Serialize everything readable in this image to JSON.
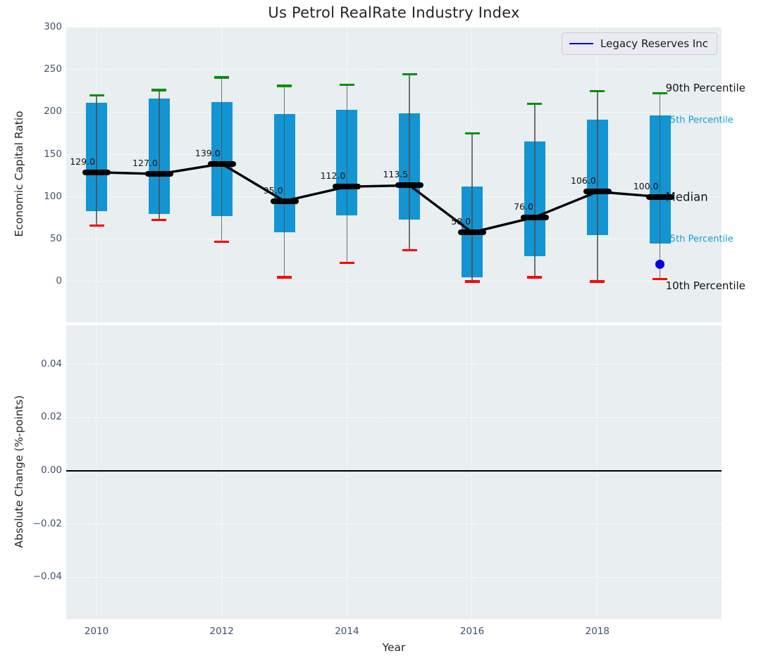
{
  "labels": {
    "title": "Us Petrol RealRate Industry Index",
    "top_ylabel": "Economic Capital Ratio",
    "bottom_ylabel": "Absolute Change (%-points)",
    "xlabel": "Year",
    "legend": "Legacy Reserves Inc"
  },
  "ticks": {
    "top_y": [
      "300",
      "250",
      "200",
      "150",
      "100",
      "50",
      "0"
    ],
    "top_y_values": [
      300,
      250,
      200,
      150,
      100,
      50,
      0
    ],
    "bottom_y": [
      "0.04",
      "0.02",
      "0.00",
      "−0.02",
      "−0.04"
    ],
    "bottom_y_values": [
      0.04,
      0.02,
      0,
      -0.02,
      -0.04
    ],
    "x": [
      "2010",
      "2012",
      "2014",
      "2016",
      "2018"
    ],
    "x_values": [
      2010,
      2012,
      2014,
      2016,
      2018
    ]
  },
  "colors": {
    "box_fill": "#1295d2",
    "whisker": "#4d4d4d",
    "cap_high": "#0a8f0a",
    "cap_low": "#ff0000",
    "median": "#000000",
    "company": "#0000e0",
    "axes_bg": "#e9eef0",
    "grid": "#ffffff",
    "tick_text": "#41516d",
    "label_text": "#262626",
    "title_text": "#262626",
    "annotation_cyan": "#1a9cd8",
    "annotation_black": "#151515",
    "legend_bg": "#eaebf2",
    "legend_border": "#cccccc"
  },
  "chart_data": [
    {
      "type": "box",
      "title": "Us Petrol RealRate Industry Index",
      "xlabel": "",
      "ylabel": "Economic Capital Ratio",
      "ylim": [
        -48,
        300
      ],
      "xlim": [
        2009.5,
        2020
      ],
      "yticks": [
        0,
        50,
        100,
        150,
        200,
        250,
        300
      ],
      "xticks": [
        2010,
        2012,
        2014,
        2016,
        2018
      ],
      "grid": true,
      "legend_position": "upper right",
      "legend_entries": [
        "Legacy Reserves Inc"
      ],
      "years": [
        2010,
        2011,
        2012,
        2013,
        2014,
        2015,
        2016,
        2017,
        2018,
        2019
      ],
      "series": [
        {
          "name": "90th Percentile",
          "values": [
            220,
            226,
            241,
            231,
            232,
            245,
            175,
            210,
            225,
            222
          ]
        },
        {
          "name": "75th Percentile",
          "values": [
            211,
            216,
            212,
            198,
            203,
            199,
            112,
            165,
            191,
            196
          ]
        },
        {
          "name": "Median",
          "values": [
            129,
            127,
            139,
            95,
            112,
            113.5,
            58,
            76,
            106,
            100
          ]
        },
        {
          "name": "25th Percentile",
          "values": [
            83,
            80,
            77,
            58,
            78,
            73,
            5,
            30,
            55,
            45
          ]
        },
        {
          "name": "10th Percentile",
          "values": [
            66,
            73,
            47,
            5,
            22,
            37,
            0,
            5,
            0,
            3
          ]
        }
      ],
      "median_labels": [
        "129.0",
        "127.0",
        "139.0",
        "95.0",
        "112.0",
        "113.5",
        "58.0",
        "76.0",
        "106.0",
        "100.0"
      ],
      "company_point": {
        "label": "Legacy Reserves Inc",
        "year": 2019,
        "value": 20
      },
      "percentile_annotations": [
        {
          "text": "90th Percentile",
          "anchor": "p90",
          "style": "black"
        },
        {
          "text": "75th Percentile",
          "anchor": "p75",
          "style": "cyan"
        },
        {
          "text": "Median",
          "anchor": "median",
          "style": "black-large"
        },
        {
          "text": "25th Percentile",
          "anchor": "p25",
          "style": "cyan"
        },
        {
          "text": "10th Percentile",
          "anchor": "p10",
          "style": "black"
        }
      ]
    },
    {
      "type": "line",
      "title": "",
      "xlabel": "Year",
      "ylabel": "Absolute Change (%-points)",
      "ylim": [
        -0.056,
        0.055
      ],
      "xlim": [
        2009.5,
        2020
      ],
      "yticks": [
        0.04,
        0.02,
        0.0,
        -0.02,
        -0.04
      ],
      "xticks": [
        2010,
        2012,
        2014,
        2016,
        2018
      ],
      "grid": true,
      "series": [],
      "zero_line": 0.0
    }
  ]
}
